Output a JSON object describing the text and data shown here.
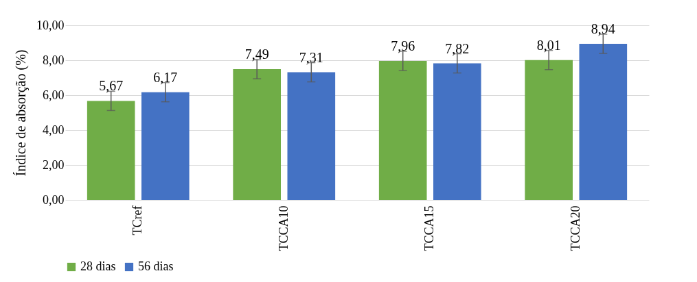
{
  "chart_data": {
    "type": "bar",
    "ylabel": "Índice de absorção (%)",
    "categories": [
      "TCref",
      "TCCA10",
      "TCCA15",
      "TCCA20"
    ],
    "series": [
      {
        "name": "28 dias",
        "color": "#70ad47",
        "values": [
          5.67,
          7.49,
          7.96,
          8.01
        ],
        "errors": [
          0.55,
          0.55,
          0.55,
          0.55
        ],
        "value_labels": [
          "5,67",
          "7,49",
          "7,96",
          "8,01"
        ]
      },
      {
        "name": "56 dias",
        "color": "#4472c4",
        "values": [
          6.17,
          7.31,
          7.82,
          8.94
        ],
        "errors": [
          0.55,
          0.55,
          0.55,
          0.55
        ],
        "value_labels": [
          "6,17",
          "7,31",
          "7,82",
          "8,94"
        ]
      }
    ],
    "ylim": [
      0,
      10
    ],
    "yticks": [
      {
        "value": 0,
        "label": "0,00"
      },
      {
        "value": 2,
        "label": "2,00"
      },
      {
        "value": 4,
        "label": "4,00"
      },
      {
        "value": 6,
        "label": "6,00"
      },
      {
        "value": 8,
        "label": "8,00"
      },
      {
        "value": 10,
        "label": "10,00"
      }
    ],
    "grid": "y",
    "legend": "bottom"
  }
}
